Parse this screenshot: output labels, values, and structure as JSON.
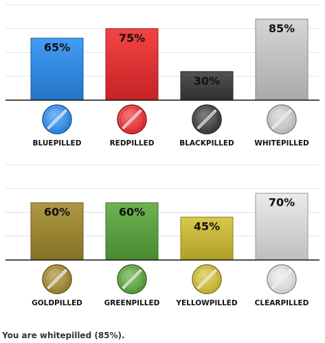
{
  "chart_data": [
    {
      "type": "bar",
      "categories": [
        "BLUEPILLED",
        "REDPILLED",
        "BLACKPILLED",
        "WHITEPILLED"
      ],
      "values": [
        65,
        75,
        30,
        85
      ],
      "value_labels": [
        "65%",
        "75%",
        "30%",
        "85%"
      ],
      "colors": [
        "#2a8ef2",
        "#f12a2c",
        "#3a3a3a",
        "#cfcfcf"
      ],
      "ylim": [
        0,
        100
      ],
      "grid": true,
      "title": "",
      "xlabel": "",
      "ylabel": ""
    },
    {
      "type": "bar",
      "categories": [
        "GOLDPILLED",
        "GREENPILLED",
        "YELLOWPILLED",
        "CLEARPILLED"
      ],
      "values": [
        60,
        60,
        45,
        70
      ],
      "value_labels": [
        "60%",
        "60%",
        "45%",
        "70%"
      ],
      "colors": [
        "#a48a2c",
        "#59a83a",
        "#d4c232",
        "#e8e8e8"
      ],
      "ylim": [
        0,
        100
      ],
      "grid": true,
      "title": "",
      "xlabel": "",
      "ylabel": ""
    }
  ],
  "result_text": "You are whitepilled (85%)."
}
